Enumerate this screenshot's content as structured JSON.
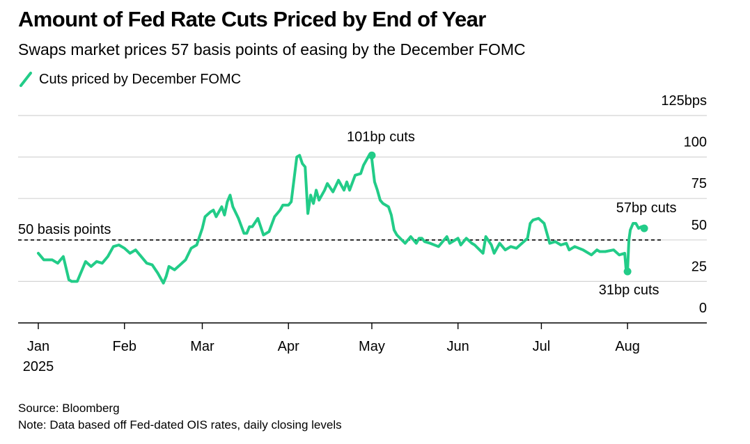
{
  "title": "Amount of Fed Rate Cuts Priced by End of Year",
  "subtitle": "Swaps market prices 57 basis points of easing by the December FOMC",
  "legend": {
    "label": "Cuts priced by December FOMC",
    "color": "#22cc88"
  },
  "source": "Source: Bloomberg",
  "note": "Note: Data based off Fed-dated OIS rates, daily closing levels",
  "chart_data": {
    "type": "line",
    "title": "Amount of Fed Rate Cuts Priced by End of Year",
    "xlabel": "",
    "ylabel": "bps",
    "ylim": [
      0,
      125
    ],
    "y_ticks": [
      0,
      25,
      50,
      75,
      100,
      125
    ],
    "y_tick_labels": [
      "0",
      "25",
      "50",
      "75",
      "100",
      "125bps"
    ],
    "x_tick_labels": [
      "Jan",
      "Feb",
      "Mar",
      "Apr",
      "May",
      "Jun",
      "Jul",
      "Aug"
    ],
    "x_tick_sublabel": "2025",
    "x_tick_days": [
      0,
      31,
      59,
      90,
      120,
      151,
      181,
      212
    ],
    "xlim": [
      0,
      228
    ],
    "reference_line": {
      "value": 50,
      "label": "50 basis points",
      "style": "dashed"
    },
    "annotations": [
      {
        "label": "101bp cuts",
        "day": 120,
        "value": 101
      },
      {
        "label": "31bp cuts",
        "day": 212,
        "value": 31
      },
      {
        "label": "57bp cuts",
        "day": 218,
        "value": 57
      }
    ],
    "series": [
      {
        "name": "Cuts priced by December FOMC",
        "color": "#22cc88",
        "x": [
          0,
          2,
          5,
          7,
          9,
          11,
          12,
          14,
          17,
          19,
          21,
          23,
          25,
          27,
          29,
          31,
          33,
          35,
          37,
          39,
          41,
          43,
          45,
          46,
          47,
          49,
          51,
          53,
          55,
          57,
          58,
          59,
          60,
          62,
          63,
          64,
          66,
          67,
          68,
          69,
          70,
          72,
          74,
          75,
          76,
          77,
          79,
          81,
          83,
          85,
          87,
          88,
          90,
          91,
          93,
          94,
          95,
          96,
          97,
          98,
          99,
          100,
          101,
          103,
          104,
          106,
          108,
          110,
          111,
          112,
          114,
          116,
          117,
          119,
          120,
          121,
          122,
          123,
          124,
          126,
          127,
          128,
          129,
          132,
          134,
          136,
          137,
          138,
          139,
          141,
          144,
          147,
          148,
          151,
          152,
          154,
          156,
          157,
          160,
          161,
          163,
          164,
          166,
          168,
          170,
          172,
          174,
          176,
          177,
          178,
          180,
          182,
          184,
          186,
          188,
          190,
          191,
          193,
          196,
          199,
          201,
          202,
          204,
          207,
          209,
          211,
          211.5,
          212,
          212.5,
          213,
          214,
          215,
          216,
          217,
          218
        ],
        "values": [
          42,
          38,
          38,
          36,
          40,
          26,
          25,
          25,
          37,
          34,
          37,
          36,
          40,
          46,
          47,
          45,
          42,
          44,
          40,
          36,
          35,
          30,
          24,
          28,
          34,
          32,
          35,
          38,
          45,
          47,
          52,
          57,
          64,
          67,
          68,
          64,
          70,
          65,
          73,
          77,
          70,
          63,
          54,
          54,
          58,
          58,
          63,
          53,
          55,
          64,
          68,
          71,
          71,
          73,
          100,
          101,
          96,
          94,
          66,
          77,
          72,
          80,
          74,
          80,
          84,
          79,
          86,
          80,
          85,
          80,
          89,
          90,
          95,
          101,
          99,
          85,
          80,
          74,
          72,
          70,
          65,
          56,
          53,
          48,
          52,
          48,
          51,
          51,
          49,
          48,
          46,
          52,
          48,
          51,
          47,
          51,
          48,
          47,
          42,
          52,
          47,
          42,
          48,
          44,
          46,
          45,
          48,
          51,
          60,
          62,
          63,
          60,
          48,
          49,
          47,
          48,
          44,
          46,
          44,
          41,
          44,
          43,
          43,
          44,
          41,
          42,
          32,
          31,
          50,
          56,
          60,
          60,
          57,
          58,
          57
        ]
      }
    ]
  }
}
